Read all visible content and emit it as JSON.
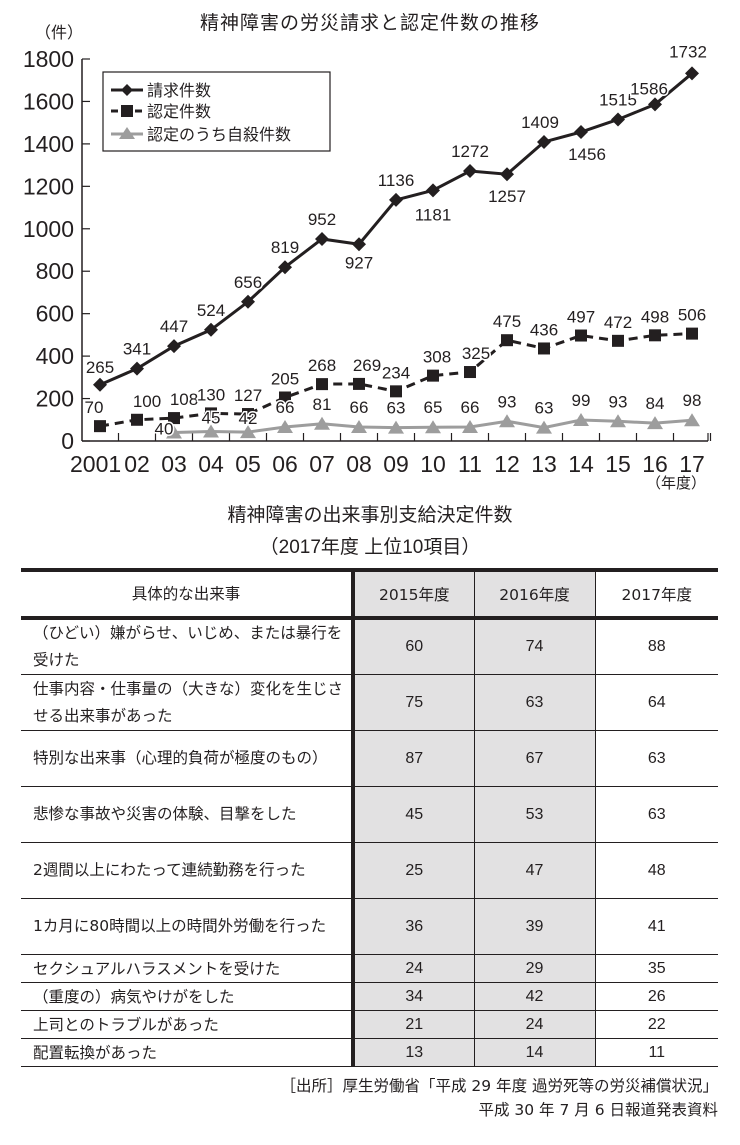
{
  "chart_data": {
    "type": "line",
    "title": "精神障害の労災請求と認定件数の推移",
    "xlabel": "（年度）",
    "ylabel": "（件）",
    "ylim": [
      0,
      1800
    ],
    "yticks": [
      0,
      200,
      400,
      600,
      800,
      1000,
      1200,
      1400,
      1600,
      1800
    ],
    "x": [
      "2001",
      "02",
      "03",
      "04",
      "05",
      "06",
      "07",
      "08",
      "09",
      "10",
      "11",
      "12",
      "13",
      "14",
      "15",
      "16",
      "17"
    ],
    "legend_position": "upper-left",
    "grid": false,
    "series": [
      {
        "name": "請求件数",
        "style": "solid-black-diamond",
        "color": "#231f20",
        "values": [
          265,
          341,
          447,
          524,
          656,
          819,
          952,
          927,
          1136,
          1181,
          1272,
          1257,
          1409,
          1456,
          1515,
          1586,
          1732
        ]
      },
      {
        "name": "認定件数",
        "style": "dashed-black-square",
        "color": "#231f20",
        "values": [
          70,
          100,
          108,
          130,
          127,
          205,
          268,
          269,
          234,
          308,
          325,
          475,
          436,
          497,
          472,
          498,
          506
        ]
      },
      {
        "name": "認定のうち自殺件数",
        "style": "solid-gray-triangle",
        "color": "#9d9d9d",
        "values": [
          null,
          null,
          40,
          45,
          42,
          66,
          81,
          66,
          63,
          65,
          66,
          93,
          63,
          99,
          93,
          84,
          98
        ]
      }
    ]
  },
  "chart": {
    "title": "精神障害の労災請求と認定件数の推移",
    "y_unit": "（件）",
    "x_unit": "（年度）"
  },
  "table": {
    "title_line1": "精神障害の出来事別支給決定件数",
    "title_line2": "（2017年度 上位10項目）",
    "headers": [
      "具体的な出来事",
      "2015年度",
      "2016年度",
      "2017年度"
    ],
    "rows": [
      {
        "event": "（ひどい）嫌がらせ、いじめ、または暴行を受けた",
        "y2015": "60",
        "y2016": "74",
        "y2017": "88"
      },
      {
        "event": "仕事内容・仕事量の（大きな）変化を生じさせる出来事があった",
        "y2015": "75",
        "y2016": "63",
        "y2017": "64"
      },
      {
        "event": "特別な出来事（心理的負荷が極度のもの）",
        "y2015": "87",
        "y2016": "67",
        "y2017": "63"
      },
      {
        "event": "悲惨な事故や災害の体験、目撃をした",
        "y2015": "45",
        "y2016": "53",
        "y2017": "63"
      },
      {
        "event": "2週間以上にわたって連続勤務を行った",
        "y2015": "25",
        "y2016": "47",
        "y2017": "48"
      },
      {
        "event": "1カ月に80時間以上の時間外労働を行った",
        "y2015": "36",
        "y2016": "39",
        "y2017": "41"
      },
      {
        "event": "セクシュアルハラスメントを受けた",
        "y2015": "24",
        "y2016": "29",
        "y2017": "35"
      },
      {
        "event": "（重度の）病気やけがをした",
        "y2015": "34",
        "y2016": "42",
        "y2017": "26"
      },
      {
        "event": "上司とのトラブルがあった",
        "y2015": "21",
        "y2016": "24",
        "y2017": "22"
      },
      {
        "event": "配置転換があった",
        "y2015": "13",
        "y2016": "14",
        "y2017": "11"
      }
    ]
  },
  "source": {
    "line1": "［出所］厚生労働省「平成 29 年度 過労死等の労災補償状況」",
    "line2": "平成 30 年 7 月 6 日報道発表資料"
  }
}
